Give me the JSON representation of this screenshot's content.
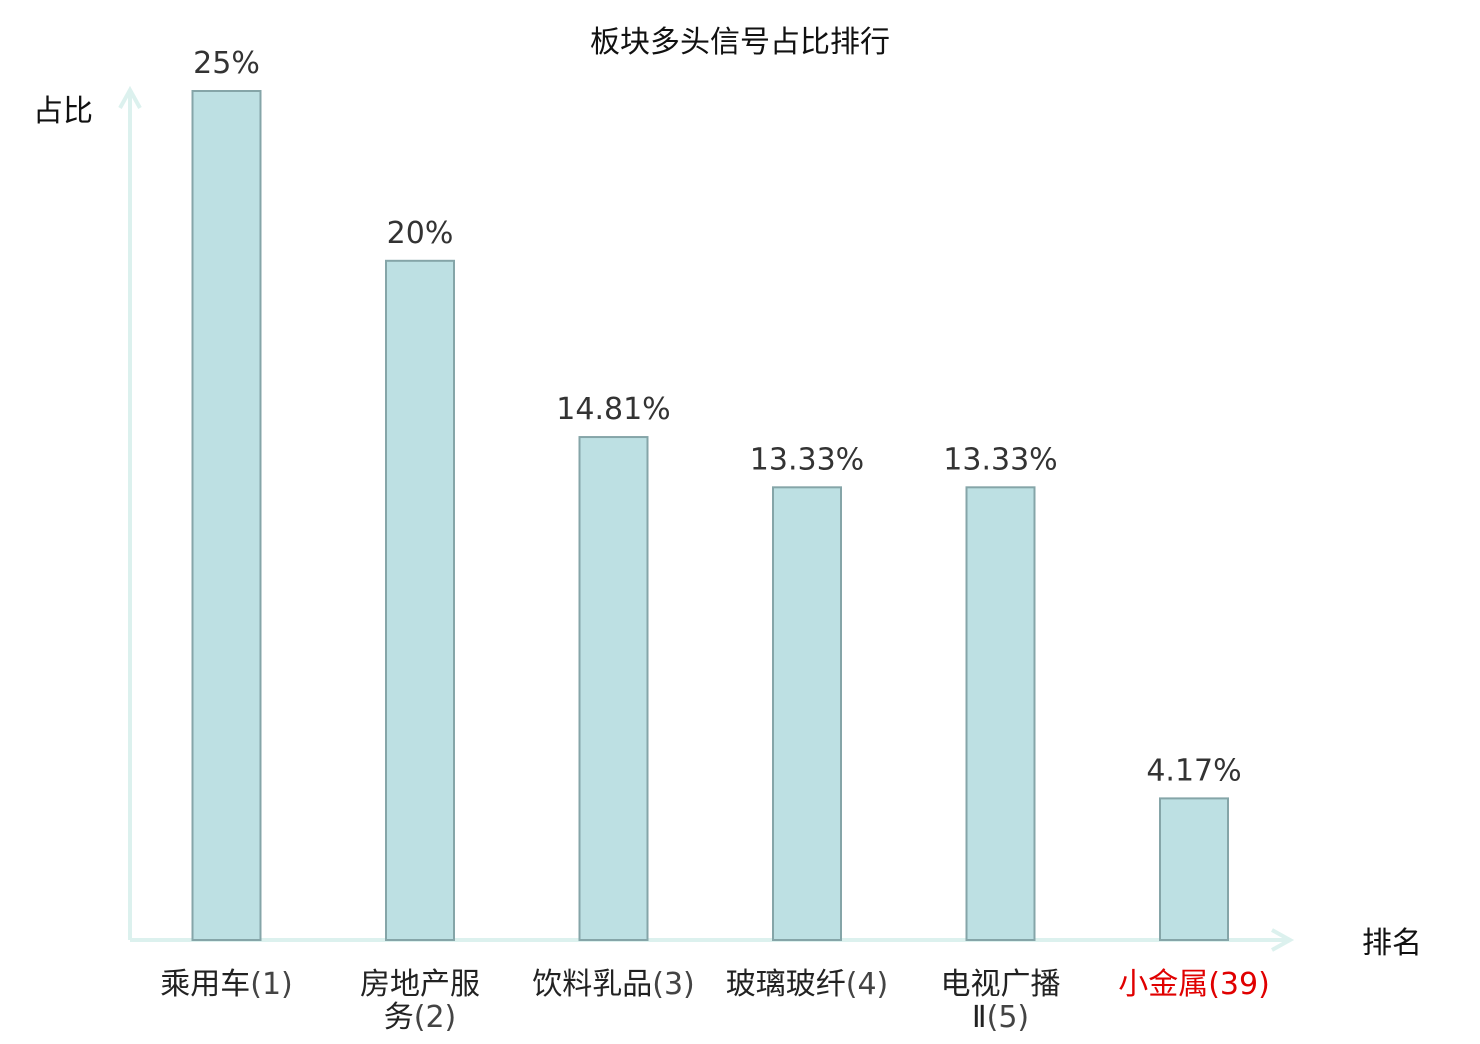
{
  "chart_data": {
    "type": "bar",
    "title": "板块多头信号占比排行",
    "ylabel": "占比",
    "xlabel": "排名",
    "ylim": [
      0,
      25
    ],
    "categories": [
      {
        "name": "乘用车",
        "rank": "(1)",
        "highlight": false
      },
      {
        "name": "房地产服务",
        "rank": "(2)",
        "highlight": false
      },
      {
        "name": "饮料乳品",
        "rank": "(3)",
        "highlight": false
      },
      {
        "name": "玻璃玻纤",
        "rank": "(4)",
        "highlight": false
      },
      {
        "name": "电视广播Ⅱ",
        "rank": "(5)",
        "highlight": false
      },
      {
        "name": "小金属",
        "rank": "(39)",
        "highlight": true
      }
    ],
    "values": [
      25,
      20,
      14.81,
      13.33,
      13.33,
      4.17
    ],
    "value_labels": [
      "25%",
      "20%",
      "14.81%",
      "13.33%",
      "13.33%",
      "4.17%"
    ],
    "grid": false,
    "legend": "none"
  },
  "colors": {
    "bar_fill": "#bde0e3",
    "bar_stroke": "#85a5a8",
    "axis": "#dcf1ee",
    "text": "#222222",
    "value_text": "#333333",
    "highlight_text": "#e00000"
  }
}
